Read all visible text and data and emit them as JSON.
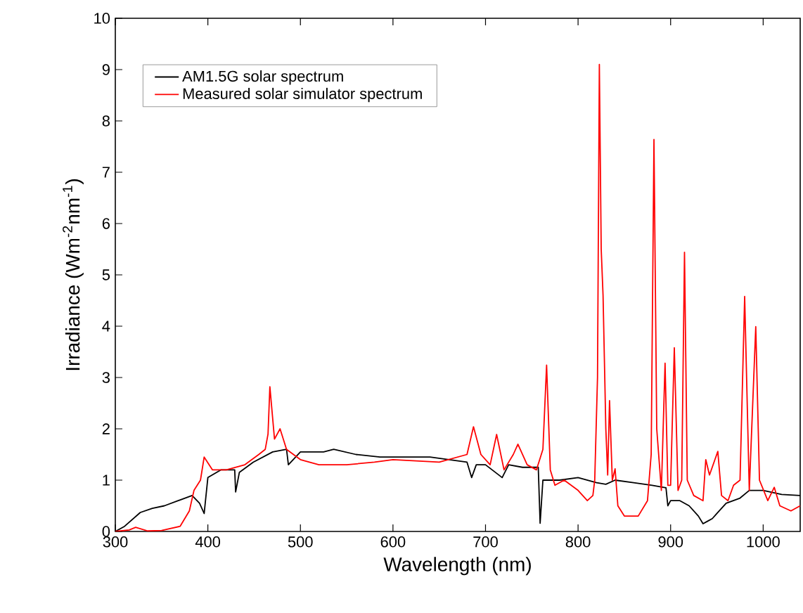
{
  "chart_data": {
    "type": "line",
    "xlabel": "Wavelength (nm)",
    "ylabel": "Irradiance (Wm$^{-2}$nm$^{-1}$)",
    "xlim": [
      300,
      1040
    ],
    "ylim": [
      0,
      10
    ],
    "xticks": [
      300,
      400,
      500,
      600,
      700,
      800,
      900,
      1000
    ],
    "yticks": [
      0,
      1,
      2,
      3,
      4,
      5,
      6,
      7,
      8,
      9,
      10
    ],
    "legend": "top left",
    "grid": false,
    "marker": "none",
    "line_style": "solid",
    "series": [
      {
        "name": "AM1.5G solar spectrum",
        "color": "#000000",
        "x": [
          300,
          310,
          327,
          340,
          353,
          368,
          383,
          391,
          396,
          400,
          414,
          429,
          430,
          434,
          449,
          470,
          485,
          487,
          500,
          525,
          536,
          560,
          586,
          600,
          640,
          680,
          685,
          690,
          700,
          718,
          725,
          740,
          757,
          759,
          762,
          770,
          780,
          800,
          820,
          830,
          840,
          860,
          880,
          895,
          897,
          900,
          910,
          920,
          930,
          935,
          940,
          945,
          950,
          960,
          975,
          985,
          1000,
          1020,
          1040
        ],
        "values": [
          0,
          0.1,
          0.37,
          0.45,
          0.5,
          0.6,
          0.7,
          0.55,
          0.35,
          1.05,
          1.2,
          1.2,
          0.77,
          1.15,
          1.35,
          1.55,
          1.6,
          1.3,
          1.55,
          1.55,
          1.6,
          1.5,
          1.45,
          1.45,
          1.45,
          1.35,
          1.05,
          1.3,
          1.3,
          1.05,
          1.3,
          1.25,
          1.25,
          0.16,
          1.0,
          1.0,
          1.0,
          1.05,
          0.95,
          0.92,
          1.0,
          0.95,
          0.9,
          0.85,
          0.5,
          0.6,
          0.6,
          0.5,
          0.3,
          0.15,
          0.2,
          0.25,
          0.35,
          0.55,
          0.65,
          0.8,
          0.8,
          0.72,
          0.7
        ]
      },
      {
        "name": "Measured solar simulator spectrum",
        "color": "#ff0000",
        "x": [
          300,
          315,
          322,
          335,
          350,
          370,
          380,
          385,
          392,
          396,
          405,
          420,
          440,
          455,
          462,
          465,
          467,
          472,
          478,
          485,
          500,
          520,
          550,
          580,
          600,
          650,
          680,
          687,
          695,
          705,
          712,
          720,
          730,
          735,
          745,
          755,
          762,
          766,
          770,
          775,
          785,
          800,
          810,
          816,
          818,
          821,
          823,
          825,
          827,
          830,
          832,
          834,
          837,
          840,
          843,
          850,
          865,
          875,
          879,
          882,
          885,
          890,
          894,
          897,
          900,
          904,
          908,
          912,
          915,
          918,
          925,
          935,
          938,
          942,
          951,
          955,
          962,
          968,
          975,
          980,
          985,
          992,
          996,
          1005,
          1012,
          1018,
          1030,
          1040
        ],
        "values": [
          0,
          0.03,
          0.08,
          0.01,
          0.02,
          0.1,
          0.4,
          0.8,
          1.0,
          1.45,
          1.2,
          1.2,
          1.3,
          1.5,
          1.6,
          1.9,
          2.82,
          1.8,
          2.0,
          1.6,
          1.4,
          1.3,
          1.3,
          1.35,
          1.4,
          1.35,
          1.5,
          2.04,
          1.5,
          1.3,
          1.89,
          1.2,
          1.5,
          1.7,
          1.3,
          1.2,
          1.6,
          3.24,
          1.2,
          0.9,
          1.0,
          0.8,
          0.6,
          0.7,
          1.0,
          3.0,
          9.1,
          5.5,
          4.6,
          2.0,
          1.1,
          2.55,
          1.0,
          1.22,
          0.5,
          0.3,
          0.3,
          0.6,
          1.5,
          7.64,
          2.0,
          0.8,
          3.28,
          0.9,
          0.9,
          3.58,
          0.8,
          1.0,
          5.44,
          1.0,
          0.7,
          0.6,
          1.4,
          1.1,
          1.56,
          0.7,
          0.6,
          0.9,
          1.0,
          4.58,
          0.8,
          3.99,
          1.0,
          0.6,
          0.86,
          0.5,
          0.4,
          0.5
        ]
      }
    ]
  }
}
